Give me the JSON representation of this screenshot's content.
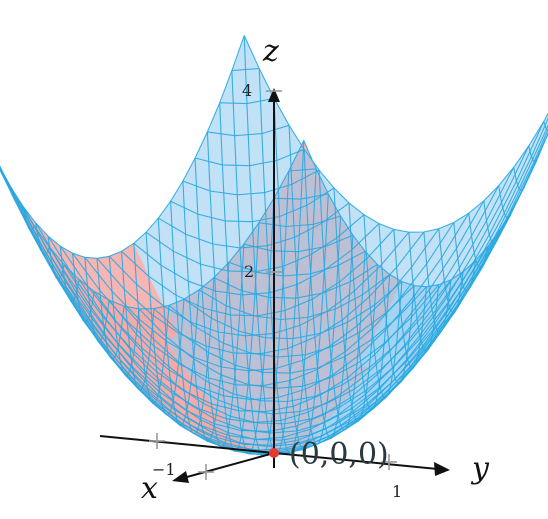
{
  "axes": {
    "x_label": "x",
    "y_label": "y",
    "z_label": "z"
  },
  "ticks": {
    "z_4": "4",
    "z_2": "2",
    "x_neg1": "−1",
    "y_1": "1"
  },
  "origin_label": "(0,0,0)",
  "colors": {
    "mesh_line": "#29a9e1",
    "back_surface_fill": "#f4a8a6",
    "front_surface_fill": "#8ec8ee",
    "origin_point": "#e53a2e",
    "axis": "#111111"
  }
}
